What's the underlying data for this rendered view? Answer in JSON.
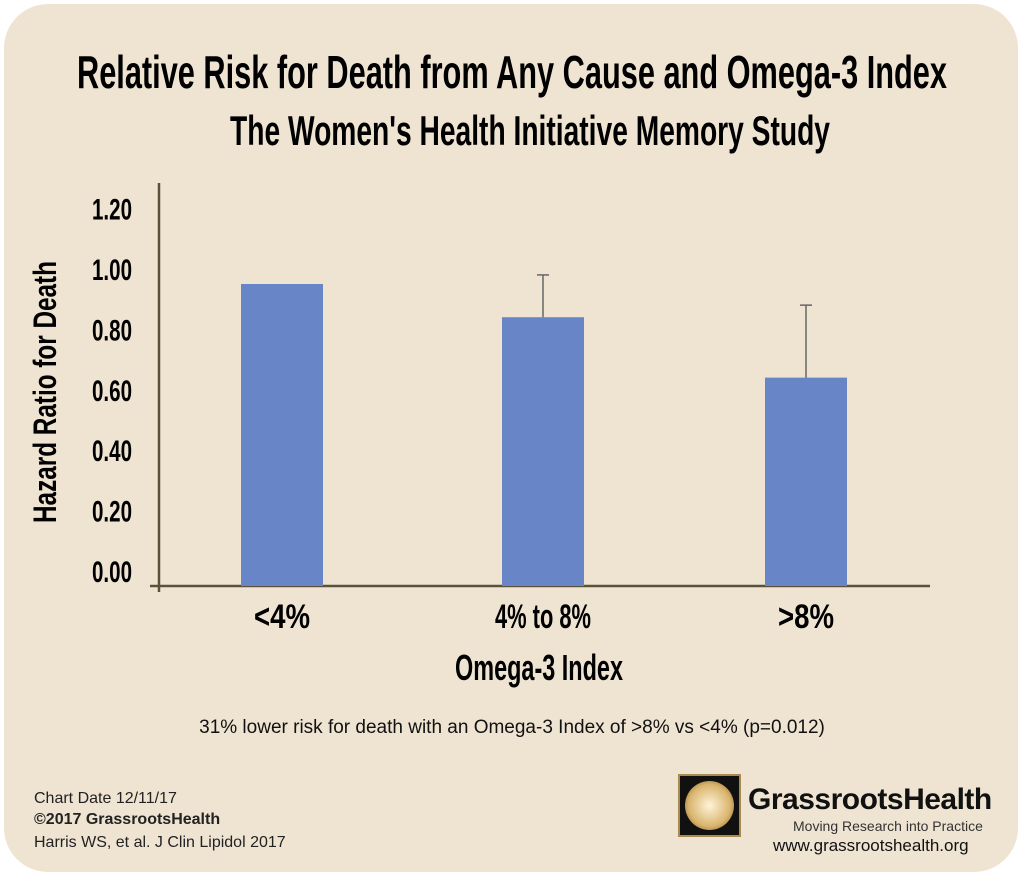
{
  "title": "Relative Risk for Death from Any Cause and Omega-3 Index",
  "subtitle": "The Women's Health Initiative Memory Study",
  "chart_data": {
    "type": "bar",
    "title": "Relative Risk for Death from Any Cause and Omega-3 Index",
    "subtitle": "The Women's Health Initiative Memory Study",
    "xlabel": "Omega-3 Index",
    "ylabel": "Hazard Ratio for Death",
    "categories": [
      "<4%",
      "4% to 8%",
      ">8%"
    ],
    "values": [
      1.0,
      0.89,
      0.69
    ],
    "error_upper": [
      null,
      1.03,
      0.93
    ],
    "ylim": [
      0,
      1.2
    ],
    "yticks": [
      "0.00",
      "0.20",
      "0.40",
      "0.60",
      "0.80",
      "1.00",
      "1.20"
    ],
    "grid": false,
    "bar_color": "#6785c7"
  },
  "annotation": "31% lower risk for death with an Omega-3 Index of >8% vs <4% (p=0.012)",
  "footer": {
    "chart_date": "Chart Date 12/11/17",
    "copyright": "©2017 GrassrootsHealth",
    "citation": "Harris WS, et al. J Clin Lipidol 2017"
  },
  "logo": {
    "name": "GrassrootsHealth",
    "tagline": "Moving Research into Practice",
    "url": "www.grassrootshealth.org"
  }
}
